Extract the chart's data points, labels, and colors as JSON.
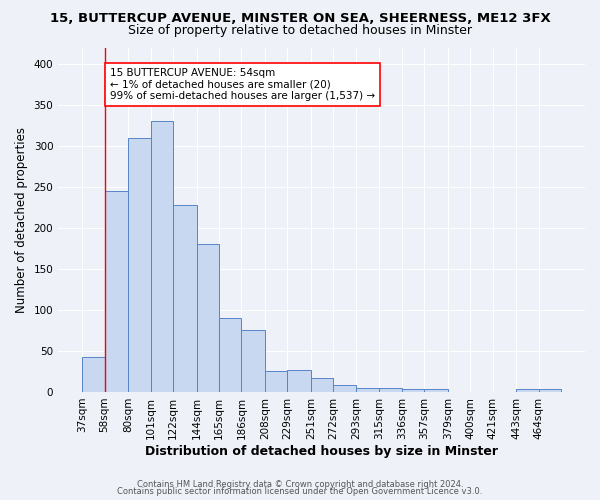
{
  "title1": "15, BUTTERCUP AVENUE, MINSTER ON SEA, SHEERNESS, ME12 3FX",
  "title2": "Size of property relative to detached houses in Minster",
  "xlabel": "Distribution of detached houses by size in Minster",
  "ylabel": "Number of detached properties",
  "categories": [
    "37sqm",
    "58sqm",
    "80sqm",
    "101sqm",
    "122sqm",
    "144sqm",
    "165sqm",
    "186sqm",
    "208sqm",
    "229sqm",
    "251sqm",
    "272sqm",
    "293sqm",
    "315sqm",
    "336sqm",
    "357sqm",
    "379sqm",
    "400sqm",
    "421sqm",
    "443sqm",
    "464sqm"
  ],
  "bar_edges": [
    37,
    58,
    80,
    101,
    122,
    144,
    165,
    186,
    208,
    229,
    251,
    272,
    293,
    315,
    336,
    357,
    379,
    400,
    421,
    443,
    464,
    485
  ],
  "heights": [
    43,
    245,
    310,
    330,
    228,
    180,
    90,
    75,
    26,
    27,
    17,
    8,
    5,
    5,
    4,
    3,
    0,
    0,
    0,
    4,
    3
  ],
  "bar_color": "#c8d8f0",
  "bar_edge_color": "#5585c8",
  "red_line_x": 58,
  "annotation_text": "15 BUTTERCUP AVENUE: 54sqm\n← 1% of detached houses are smaller (20)\n99% of semi-detached houses are larger (1,537) →",
  "footer1": "Contains HM Land Registry data © Crown copyright and database right 2024.",
  "footer2": "Contains public sector information licensed under the Open Government Licence v3.0.",
  "ylim": [
    0,
    420
  ],
  "yticks": [
    0,
    50,
    100,
    150,
    200,
    250,
    300,
    350,
    400
  ],
  "background_color": "#eef2f8",
  "title1_fontsize": 9.5,
  "title2_fontsize": 9,
  "xlabel_fontsize": 9,
  "ylabel_fontsize": 8.5,
  "tick_fontsize": 7.5,
  "annot_fontsize": 7.5,
  "footer_fontsize": 6
}
